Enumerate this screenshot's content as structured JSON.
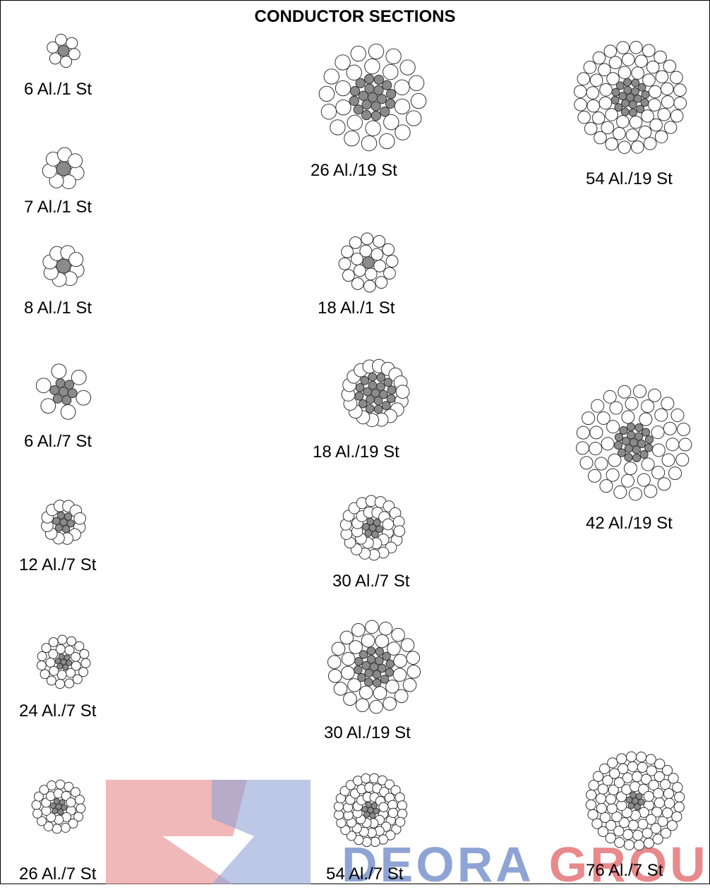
{
  "title": "CONDUCTOR SECTIONS",
  "colors": {
    "steel": "#8a8a8a",
    "aluminium": "#ffffff",
    "stroke": "#333333",
    "watermark_red": "#e8898b",
    "watermark_blue": "#8fa4d4"
  },
  "conductors": [
    {
      "label": "6 Al./1 St"
    },
    {
      "label": "7 Al./1 St"
    },
    {
      "label": "8 Al./1 St"
    },
    {
      "label": "6 Al./7 St"
    },
    {
      "label": "12 Al./7 St"
    },
    {
      "label": "24 Al./7 St"
    },
    {
      "label": "26 Al./7 St"
    },
    {
      "label": "26 Al./19 St"
    },
    {
      "label": "18 Al./1 St"
    },
    {
      "label": "18 Al./19 St"
    },
    {
      "label": "30 Al./7 St"
    },
    {
      "label": "30 Al./19 St"
    },
    {
      "label": "54 Al./7 St"
    },
    {
      "label": "54 Al./19 St"
    },
    {
      "label": "42 Al./19 St"
    },
    {
      "label": "76 Al./7 St"
    }
  ],
  "watermark": {
    "text_a": "DEORA",
    "text_b": " GROUP"
  }
}
